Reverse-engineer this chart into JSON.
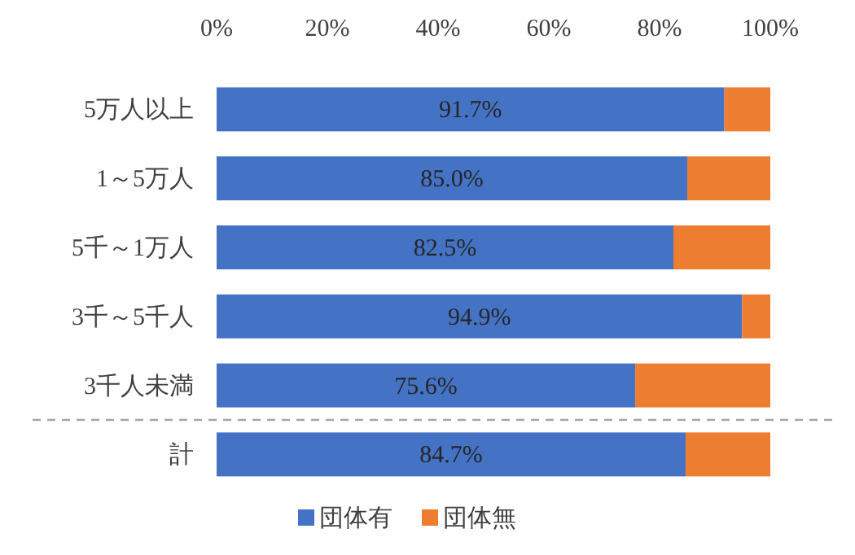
{
  "chart_data": {
    "type": "bar",
    "orientation": "horizontal",
    "stacked": true,
    "categories": [
      "5万人以上",
      "1～5万人",
      "5千～1万人",
      "3千～5千人",
      "3千人未満",
      "計"
    ],
    "series": [
      {
        "name": "団体有",
        "color": "#4472c4",
        "values": [
          91.7,
          85.0,
          82.5,
          94.9,
          75.6,
          84.7
        ],
        "value_labels": [
          "91.7%",
          "85.0%",
          "82.5%",
          "94.9%",
          "75.6%",
          "84.7%"
        ]
      },
      {
        "name": "団体無",
        "color": "#ed7d31",
        "values": [
          8.3,
          15.0,
          17.5,
          5.1,
          24.4,
          15.3
        ]
      }
    ],
    "xlim": [
      0,
      100
    ],
    "xticks": [
      {
        "value": 0,
        "label": "0%"
      },
      {
        "value": 20,
        "label": "20%"
      },
      {
        "value": 40,
        "label": "40%"
      },
      {
        "value": 60,
        "label": "60%"
      },
      {
        "value": 80,
        "label": "80%"
      },
      {
        "value": 100,
        "label": "100%"
      }
    ],
    "legend": "bottom",
    "grid": false
  }
}
